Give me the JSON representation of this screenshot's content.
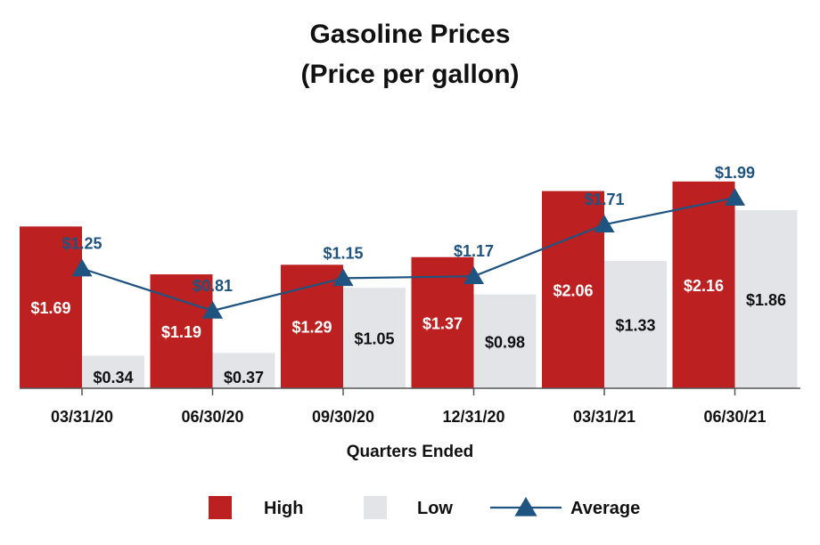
{
  "chart_data": {
    "type": "bar",
    "title": "Gasoline Prices",
    "subtitle": "(Price per gallon)",
    "xlabel": "Quarters Ended",
    "ylabel": "",
    "categories": [
      "03/31/20",
      "06/30/20",
      "09/30/20",
      "12/31/20",
      "03/31/21",
      "06/30/21"
    ],
    "series": [
      {
        "name": "High",
        "kind": "bar",
        "color": "#bd2020",
        "values": [
          1.69,
          1.19,
          1.29,
          1.37,
          2.06,
          2.16
        ],
        "labels": [
          "$1.69",
          "$1.19",
          "$1.29",
          "$1.37",
          "$2.06",
          "$2.16"
        ]
      },
      {
        "name": "Low",
        "kind": "bar",
        "color": "#e3e4e8",
        "values": [
          0.34,
          0.37,
          1.05,
          0.98,
          1.33,
          1.86
        ],
        "labels": [
          "$0.34",
          "$0.37",
          "$1.05",
          "$0.98",
          "$1.33",
          "$1.86"
        ]
      },
      {
        "name": "Average",
        "kind": "line",
        "color": "#1f5380",
        "marker": "triangle",
        "values": [
          1.25,
          0.81,
          1.15,
          1.17,
          1.71,
          1.99
        ],
        "labels": [
          "$1.25",
          "$0.81",
          "$1.15",
          "$1.17",
          "$1.71",
          "$1.99"
        ]
      }
    ],
    "ylim": [
      0,
      2.4
    ],
    "grid": false,
    "legend": "bottom"
  }
}
